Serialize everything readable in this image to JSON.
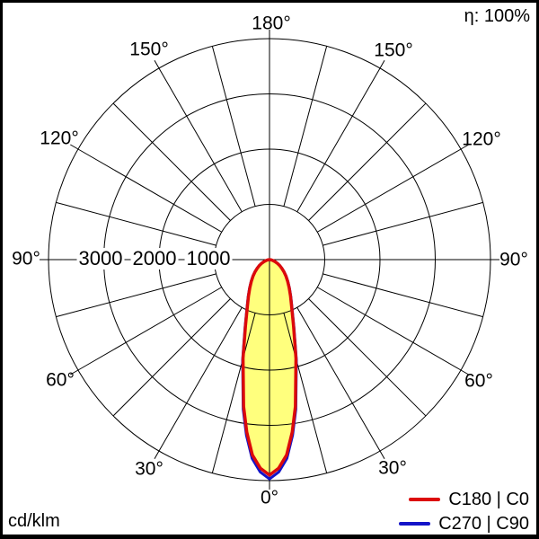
{
  "labels": {
    "a0": "0°",
    "a30": "30°",
    "a60": "60°",
    "a90": "90°",
    "a120": "120°",
    "a150": "150°",
    "a180": "180°",
    "r1000": "1000",
    "r2000": "2000",
    "r3000": "3000",
    "efficiency": "η: 100%",
    "unit": "cd/klm"
  },
  "legend": [
    {
      "label": "C180 | C0",
      "color": "#dc0a0a"
    },
    {
      "label": "C270 | C90",
      "color": "#1414c8"
    }
  ],
  "chart_data": {
    "type": "polar-intensity",
    "unit": "cd/klm",
    "efficiency_percent": 100,
    "rmax": 4000,
    "radial_ticks": [
      1000,
      2000,
      3000,
      4000
    ],
    "radial_tick_labels": [
      "3000",
      "2000",
      "1000"
    ],
    "angle_grid_step_deg": 15,
    "angle_label_step_deg": 30,
    "angle_labels": [
      "0°",
      "30°",
      "60°",
      "90°",
      "120°",
      "150°",
      "180°"
    ],
    "grid_on": true,
    "legend_position": "bottom-right",
    "series": [
      {
        "name": "C180 | C0",
        "color": "#dc0a0a",
        "fill": "#ffff7d",
        "gamma_deg": [
          0,
          2.5,
          5,
          7.5,
          10,
          15,
          20,
          25,
          30,
          35,
          40,
          45,
          50,
          55,
          60,
          65,
          70,
          75,
          80,
          85,
          90
        ],
        "values": [
          3900,
          3780,
          3550,
          3150,
          2700,
          1850,
          1270,
          950,
          760,
          620,
          510,
          420,
          340,
          270,
          210,
          155,
          105,
          65,
          35,
          12,
          0
        ]
      },
      {
        "name": "C270 | C90",
        "color": "#1414c8",
        "fill": null,
        "gamma_deg": [
          0,
          2.5,
          5,
          7.5,
          10,
          15,
          20,
          25,
          30,
          35,
          40,
          45,
          50,
          55,
          60,
          65,
          70,
          75,
          80,
          85,
          90
        ],
        "values": [
          3900,
          3780,
          3550,
          3150,
          2700,
          1850,
          1270,
          950,
          760,
          620,
          510,
          420,
          340,
          270,
          210,
          155,
          105,
          65,
          35,
          12,
          0
        ]
      }
    ]
  }
}
